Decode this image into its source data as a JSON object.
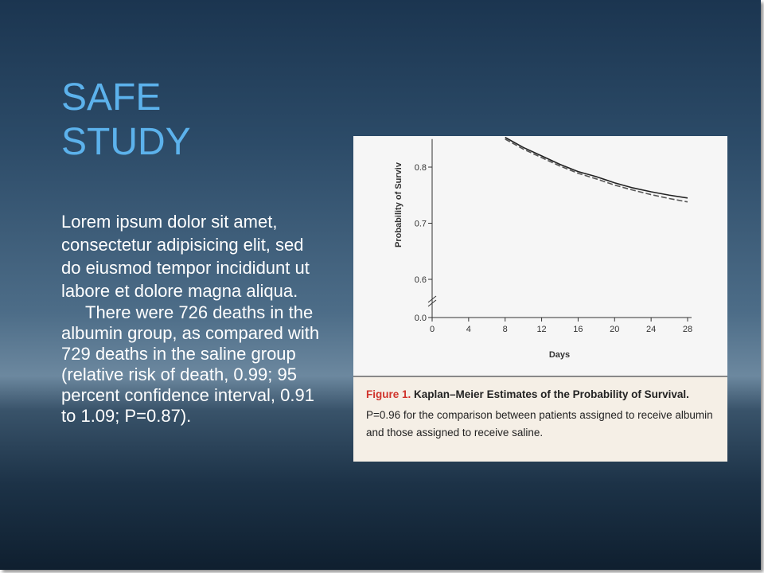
{
  "title": "SAFE STUDY",
  "body": {
    "paragraphs": [
      "Lorem ipsum dolor sit amet, consectetur adipisicing elit, sed do eiusmod tempor incididunt ut labore et dolore magna aliqua.",
      "There were 726 deaths in the albumin group, as compared with 729 deaths in the saline group (relative risk of death, 0.99; 95 percent confidence interval, 0.91 to 1.09; P=0.87)."
    ]
  },
  "figure": {
    "caption_label": "Figure 1.",
    "caption_title": "Kaplan–Meier Estimates of the Probability of Survival.",
    "caption_text": "P=0.96 for the comparison between patients assigned to receive albumin and those assigned to receive saline.",
    "chart": {
      "type": "line",
      "ylabel": "Probability of Surviv",
      "xlabel": "Days",
      "xlim": [
        0,
        28
      ],
      "xticks": [
        0,
        4,
        8,
        12,
        16,
        20,
        24,
        28
      ],
      "ylim": [
        0,
        0.85
      ],
      "yticks": [
        {
          "value": 0,
          "label": "0.0"
        },
        0.6,
        0.7,
        0.8
      ],
      "x": [
        8,
        10,
        12,
        14,
        16,
        18,
        20,
        22,
        24,
        26,
        28
      ],
      "series": [
        {
          "color": "#222222",
          "values": [
            0.853,
            0.835,
            0.82,
            0.805,
            0.792,
            0.783,
            0.772,
            0.763,
            0.756,
            0.75,
            0.745
          ]
        },
        {
          "color": "#555555",
          "values": [
            0.85,
            0.832,
            0.817,
            0.802,
            0.789,
            0.779,
            0.768,
            0.759,
            0.751,
            0.744,
            0.738
          ]
        }
      ]
    }
  }
}
